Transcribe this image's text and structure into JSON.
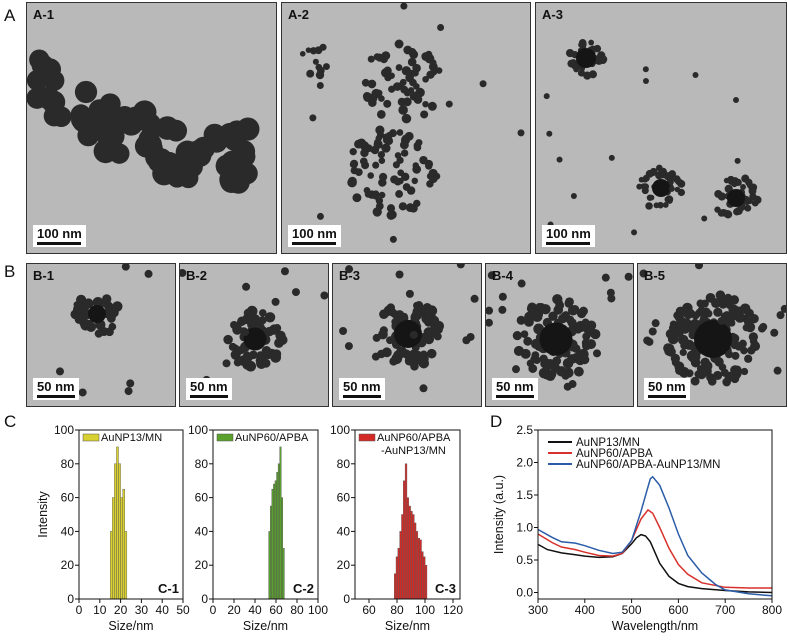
{
  "panel_labels": {
    "A": "A",
    "B": "B",
    "C": "C",
    "D": "D"
  },
  "tem_images": [
    {
      "label": "A-1",
      "scale": "100 nm"
    },
    {
      "label": "A-2",
      "scale": "100 nm"
    },
    {
      "label": "A-3",
      "scale": "100 nm"
    },
    {
      "label": "B-1",
      "scale": "50 nm"
    },
    {
      "label": "B-2",
      "scale": "50 nm"
    },
    {
      "label": "B-3",
      "scale": "50 nm"
    },
    {
      "label": "B-4",
      "scale": "50 nm"
    },
    {
      "label": "B-5",
      "scale": "50 nm"
    }
  ],
  "chart_data": [
    {
      "type": "bar",
      "panel": "C-1",
      "legend": "AuNP13/MN",
      "color": "#d8d030",
      "xlabel": "Size/nm",
      "ylabel": "Intensity",
      "xlim": [
        0,
        50
      ],
      "ylim": [
        0,
        100
      ],
      "xticks": [
        0,
        10,
        20,
        30,
        40,
        50
      ],
      "yticks": [
        0,
        20,
        40,
        60,
        80,
        100
      ],
      "x": [
        15,
        16,
        17,
        18,
        19,
        20,
        21,
        22
      ],
      "values": [
        40,
        60,
        80,
        90,
        80,
        60,
        65,
        40
      ],
      "bin_width": 1
    },
    {
      "type": "bar",
      "panel": "C-2",
      "legend": "AuNP60/APBA",
      "color": "#5aa02c",
      "xlabel": "Size/nm",
      "ylabel": "",
      "xlim": [
        0,
        100
      ],
      "ylim": [
        0,
        100
      ],
      "xticks": [
        0,
        20,
        40,
        60,
        80,
        100
      ],
      "yticks": [
        0,
        20,
        40,
        60,
        80,
        100
      ],
      "x": [
        53,
        54.5,
        56,
        57.5,
        59,
        60.5,
        62,
        63.5,
        65,
        66.5
      ],
      "values": [
        40,
        55,
        65,
        68,
        70,
        75,
        80,
        90,
        60,
        30
      ],
      "bin_width": 1.5
    },
    {
      "type": "bar",
      "panel": "C-3",
      "legend": "AuNP60/APBA\n-AuNP13/MN",
      "legend_lines": [
        "AuNP60/APBA",
        "-AuNP13/MN"
      ],
      "color": "#d42a26",
      "xlabel": "Size/nm",
      "ylabel": "",
      "xlim": [
        50,
        125
      ],
      "ylim": [
        0,
        100
      ],
      "xticks": [
        60,
        80,
        100,
        120
      ],
      "yticks": [
        0,
        20,
        40,
        60,
        80,
        100
      ],
      "x": [
        78,
        79.3,
        80.6,
        81.9,
        83.2,
        84.5,
        85.8,
        87.1,
        88.4,
        89.7,
        91,
        92.3,
        93.6,
        94.9,
        96.2,
        97.5,
        98.8,
        100.1
      ],
      "values": [
        15,
        25,
        30,
        40,
        50,
        70,
        80,
        60,
        55,
        52,
        50,
        45,
        40,
        36,
        35,
        28,
        25,
        20
      ],
      "bin_width": 1.3
    },
    {
      "type": "line",
      "panel": "D",
      "xlabel": "Wavelength/nm",
      "ylabel": "Intensity (a.u.)",
      "xlim": [
        300,
        800
      ],
      "ylim": [
        -0.1,
        2.5
      ],
      "xticks": [
        300,
        400,
        500,
        600,
        700,
        800
      ],
      "yticks": [
        0.0,
        0.5,
        1.0,
        1.5,
        2.0,
        2.5
      ],
      "legend_position": "top-left",
      "series": [
        {
          "name": "AuNP13/MN",
          "color": "#111111",
          "x": [
            300,
            320,
            350,
            380,
            400,
            430,
            460,
            480,
            500,
            510,
            520,
            530,
            540,
            560,
            580,
            600,
            620,
            650,
            700,
            750,
            800
          ],
          "y": [
            0.74,
            0.66,
            0.61,
            0.58,
            0.56,
            0.54,
            0.55,
            0.6,
            0.75,
            0.84,
            0.89,
            0.87,
            0.78,
            0.45,
            0.25,
            0.14,
            0.09,
            0.06,
            0.03,
            0.01,
            0.0
          ]
        },
        {
          "name": "AuNP60/APBA",
          "color": "#d8312c",
          "x": [
            300,
            330,
            350,
            380,
            400,
            430,
            460,
            480,
            500,
            520,
            535,
            545,
            560,
            580,
            600,
            620,
            650,
            700,
            750,
            800
          ],
          "y": [
            0.9,
            0.77,
            0.7,
            0.66,
            0.62,
            0.57,
            0.56,
            0.6,
            0.8,
            1.13,
            1.27,
            1.22,
            1.0,
            0.68,
            0.43,
            0.28,
            0.15,
            0.08,
            0.07,
            0.07
          ]
        },
        {
          "name": "AuNP60/APBA-AuNP13/MN",
          "color": "#2a5ca8",
          "x": [
            300,
            330,
            350,
            380,
            400,
            430,
            460,
            480,
            500,
            520,
            540,
            545,
            560,
            580,
            600,
            620,
            650,
            680,
            700,
            750,
            800
          ],
          "y": [
            0.97,
            0.85,
            0.78,
            0.76,
            0.72,
            0.65,
            0.6,
            0.62,
            0.8,
            1.25,
            1.75,
            1.78,
            1.65,
            1.3,
            0.9,
            0.57,
            0.3,
            0.12,
            0.04,
            -0.02,
            -0.05
          ]
        }
      ]
    }
  ]
}
